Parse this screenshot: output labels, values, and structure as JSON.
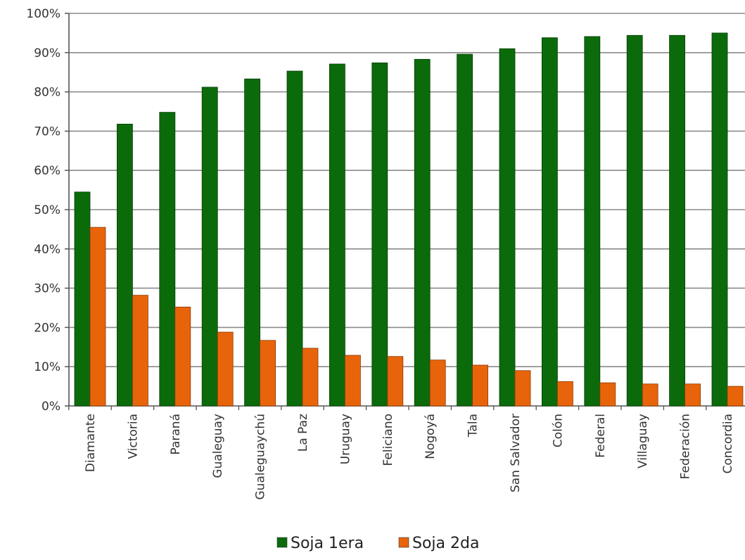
{
  "chart_data": {
    "type": "bar",
    "title": "",
    "xlabel": "",
    "ylabel": "",
    "ylim": [
      0,
      100
    ],
    "y_tick_format": "percent",
    "y_ticks": [
      "0%",
      "10%",
      "20%",
      "30%",
      "40%",
      "50%",
      "60%",
      "70%",
      "80%",
      "90%",
      "100%"
    ],
    "grid": true,
    "legend_position": "bottom",
    "categories": [
      "Diamante",
      "Victoria",
      "Paraná",
      "Gualeguay",
      "Gualeguaychú",
      "La Paz",
      "Uruguay",
      "Feliciano",
      "Nogoyá",
      "Tala",
      "San Salvador",
      "Colón",
      "Federal",
      "Villaguay",
      "Federación",
      "Concordia"
    ],
    "series": [
      {
        "name": "Soja 1era",
        "color": "#0b6b0b",
        "values": [
          54.5,
          71.8,
          74.8,
          81.2,
          83.3,
          85.3,
          87.1,
          87.4,
          88.3,
          89.6,
          91.0,
          93.8,
          94.1,
          94.4,
          94.4,
          95.0
        ]
      },
      {
        "name": "Soja 2da",
        "color": "#e8640a",
        "values": [
          45.5,
          28.2,
          25.2,
          18.8,
          16.7,
          14.7,
          12.9,
          12.6,
          11.7,
          10.4,
          9.0,
          6.2,
          5.9,
          5.6,
          5.6,
          5.0
        ]
      }
    ]
  }
}
